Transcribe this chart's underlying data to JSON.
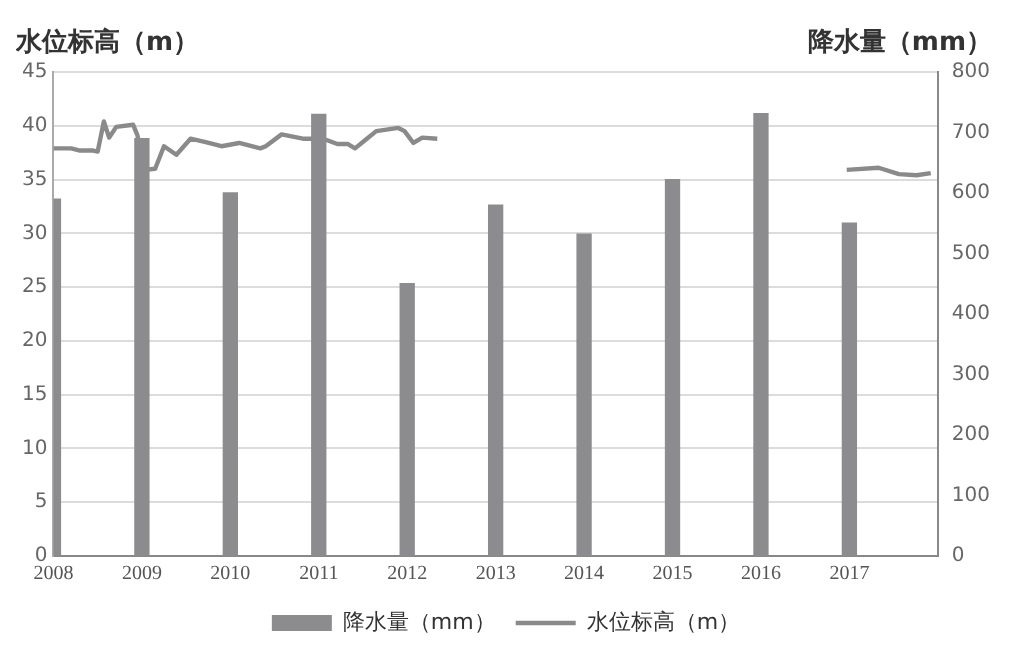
{
  "chart_data": {
    "type": "bar",
    "ylabel": "水位标高（m）",
    "y2label": "降水量（mm）",
    "xlim": [
      2008,
      2018
    ],
    "xticks": [
      2008,
      2009,
      2010,
      2011,
      2012,
      2013,
      2014,
      2015,
      2016,
      2017
    ],
    "ylim": [
      0,
      45
    ],
    "yticks": [
      0,
      5,
      10,
      15,
      20,
      25,
      30,
      35,
      40,
      45
    ],
    "y2lim": [
      0,
      800
    ],
    "y2ticks": [
      0,
      100,
      200,
      300,
      400,
      500,
      600,
      700,
      800
    ],
    "grid": "y",
    "legend": "bottom",
    "series": [
      {
        "name": "降水量（mm）",
        "axis": "y2",
        "color": "#8c8c8e",
        "x": [
          2008,
          2009,
          2010,
          2011,
          2012,
          2013,
          2014,
          2015,
          2016,
          2017
        ],
        "values": [
          590,
          690,
          600,
          730,
          450,
          580,
          532,
          622,
          731,
          550
        ]
      },
      {
        "name": "水位标高（m）",
        "type": "line",
        "axis": "y",
        "color": "#8a8a8a",
        "marker": "none",
        "line_style": "solid",
        "x": [
          2008.0,
          2008.2,
          2008.3,
          2008.45,
          2008.5,
          2008.57,
          2008.63,
          2008.71,
          2008.9,
          2008.95,
          2009.03,
          2009.15,
          2009.25,
          2009.39,
          2009.55,
          2009.71,
          2009.9,
          2010.1,
          2010.34,
          2010.4,
          2010.58,
          2010.82,
          2011.05,
          2011.21,
          2011.33,
          2011.41,
          2011.53,
          2011.65,
          2011.9,
          2011.97,
          2012.07,
          2012.17,
          2012.34,
          2014.5,
          2016.97,
          2017.33,
          2017.56,
          2017.76,
          2017.92
        ],
        "values": [
          37.9,
          37.9,
          37.7,
          37.7,
          37.6,
          40.4,
          38.9,
          39.9,
          40.1,
          39.1,
          35.9,
          36.0,
          38.1,
          37.3,
          38.8,
          38.5,
          38.1,
          38.4,
          37.9,
          38.1,
          39.2,
          38.8,
          38.8,
          38.3,
          38.3,
          37.9,
          38.7,
          39.5,
          39.8,
          39.5,
          38.4,
          38.9,
          38.8,
          null,
          35.9,
          36.1,
          35.5,
          35.4,
          35.6
        ]
      }
    ]
  }
}
